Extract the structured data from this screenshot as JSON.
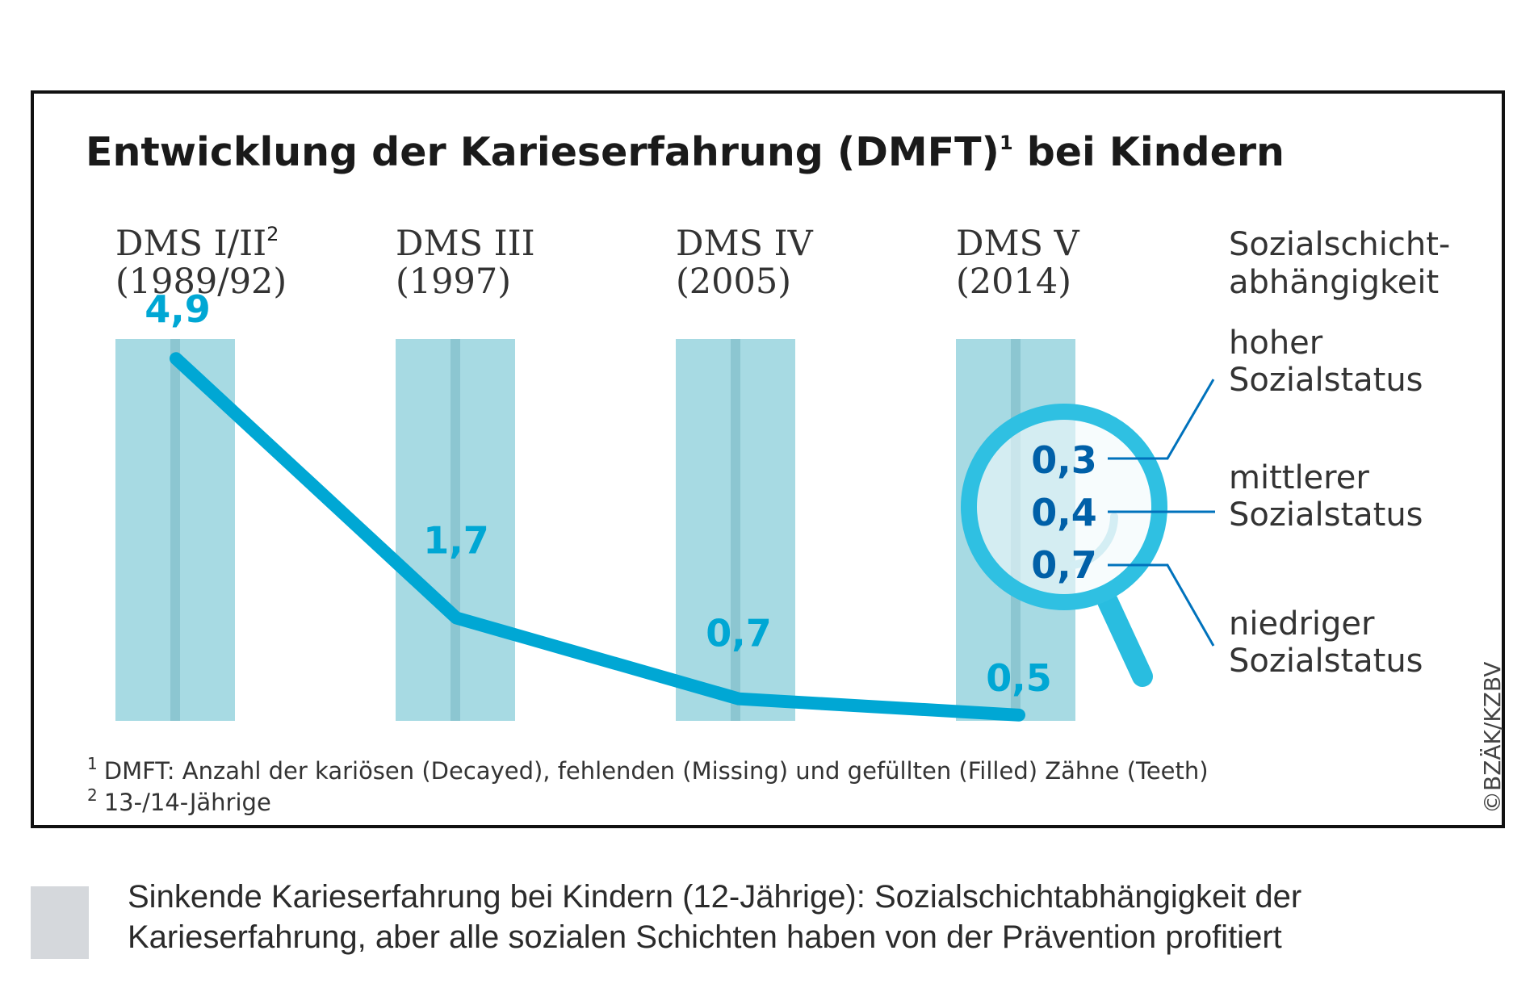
{
  "colors": {
    "bar": "#a7dae3",
    "bar_center": "#8cc6d1",
    "line": "#00a7d4",
    "magnifier_value": "#0060a8",
    "leader": "#0072bc",
    "caption_box": "#d5d8dc",
    "frame": "#111111"
  },
  "chart_data": {
    "type": "line",
    "title": "Entwicklung der Karieserfahrung (DMFT)",
    "title_sup": "1",
    "title_rest": " bei Kindern",
    "categories": [
      {
        "name": "DMS I/II",
        "sup": "2",
        "period": "(1989/92)"
      },
      {
        "name": "DMS III",
        "sup": "",
        "period": "(1997)"
      },
      {
        "name": "DMS IV",
        "sup": "",
        "period": "(2005)"
      },
      {
        "name": "DMS V",
        "sup": "",
        "period": "(2014)"
      }
    ],
    "series": [
      {
        "name": "DMFT",
        "values": [
          4.9,
          1.7,
          0.7,
          0.5
        ]
      }
    ],
    "value_labels": [
      "4,9",
      "1,7",
      "0,7",
      "0,5"
    ],
    "ylim": [
      0,
      5.5
    ],
    "social": {
      "heading": [
        "Sozialschicht-",
        "abhängigkeit"
      ],
      "groups": [
        {
          "value": 0.3,
          "value_label": "0,3",
          "label": [
            "hoher",
            "Sozialstatus"
          ]
        },
        {
          "value": 0.4,
          "value_label": "0,4",
          "label": [
            "mittlerer",
            "Sozialstatus"
          ]
        },
        {
          "value": 0.7,
          "value_label": "0,7",
          "label": [
            "niedriger",
            "Sozialstatus"
          ]
        }
      ]
    },
    "footnotes": [
      {
        "mark": "1",
        "text": "DMFT: Anzahl der kariösen (Decayed), fehlenden (Missing) und gefüllten (Filled) Zähne (Teeth)"
      },
      {
        "mark": "2",
        "text": "13-/14-Jährige"
      }
    ],
    "copyright": "©BZÄK/KZBV"
  },
  "caption": {
    "line1": "Sinkende Karieserfahrung bei Kindern (12-Jährige): Sozialschichtabhängigkeit der",
    "line2": "Karieserfahrung, aber alle sozialen Schichten haben von der Prävention profitiert"
  }
}
